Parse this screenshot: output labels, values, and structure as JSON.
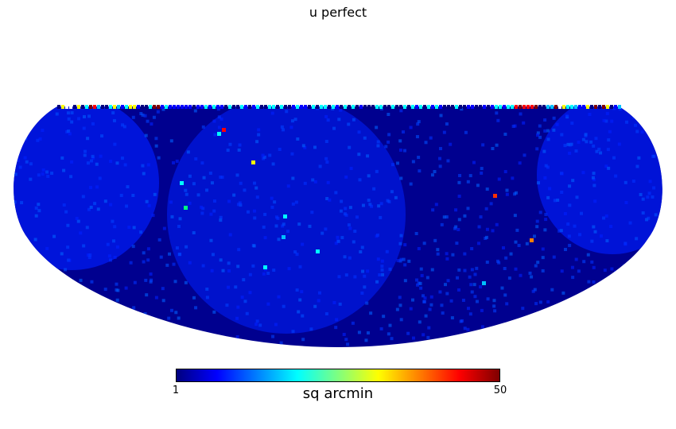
{
  "figure": {
    "title": "u perfect",
    "projection": "mollweide",
    "colormap": "jet",
    "background_color": "#00007f"
  },
  "colorbar": {
    "min_label": "1",
    "max_label": "50",
    "unit_label": "sq arcmin",
    "min": 1,
    "max": 50
  }
}
